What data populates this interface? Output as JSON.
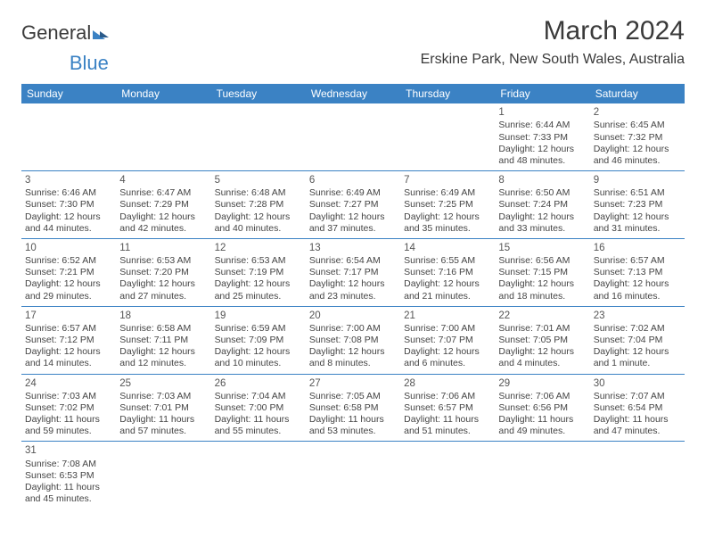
{
  "brand": {
    "part1": "General",
    "part2": "Blue"
  },
  "header": {
    "month_title": "March 2024",
    "location": "Erskine Park, New South Wales, Australia"
  },
  "styling": {
    "header_bg": "#3b82c4",
    "header_fg": "#ffffff",
    "row_border": "#3b82c4",
    "page_bg": "#ffffff",
    "text_color": "#444444",
    "month_title_fontsize": 30,
    "location_fontsize": 16,
    "dayheader_fontsize": 12,
    "cell_fontsize": 10.5,
    "columns": 7
  },
  "day_headers": [
    "Sunday",
    "Monday",
    "Tuesday",
    "Wednesday",
    "Thursday",
    "Friday",
    "Saturday"
  ],
  "weeks": [
    [
      null,
      null,
      null,
      null,
      null,
      {
        "n": "1",
        "sr": "Sunrise: 6:44 AM",
        "ss": "Sunset: 7:33 PM",
        "d1": "Daylight: 12 hours",
        "d2": "and 48 minutes."
      },
      {
        "n": "2",
        "sr": "Sunrise: 6:45 AM",
        "ss": "Sunset: 7:32 PM",
        "d1": "Daylight: 12 hours",
        "d2": "and 46 minutes."
      }
    ],
    [
      {
        "n": "3",
        "sr": "Sunrise: 6:46 AM",
        "ss": "Sunset: 7:30 PM",
        "d1": "Daylight: 12 hours",
        "d2": "and 44 minutes."
      },
      {
        "n": "4",
        "sr": "Sunrise: 6:47 AM",
        "ss": "Sunset: 7:29 PM",
        "d1": "Daylight: 12 hours",
        "d2": "and 42 minutes."
      },
      {
        "n": "5",
        "sr": "Sunrise: 6:48 AM",
        "ss": "Sunset: 7:28 PM",
        "d1": "Daylight: 12 hours",
        "d2": "and 40 minutes."
      },
      {
        "n": "6",
        "sr": "Sunrise: 6:49 AM",
        "ss": "Sunset: 7:27 PM",
        "d1": "Daylight: 12 hours",
        "d2": "and 37 minutes."
      },
      {
        "n": "7",
        "sr": "Sunrise: 6:49 AM",
        "ss": "Sunset: 7:25 PM",
        "d1": "Daylight: 12 hours",
        "d2": "and 35 minutes."
      },
      {
        "n": "8",
        "sr": "Sunrise: 6:50 AM",
        "ss": "Sunset: 7:24 PM",
        "d1": "Daylight: 12 hours",
        "d2": "and 33 minutes."
      },
      {
        "n": "9",
        "sr": "Sunrise: 6:51 AM",
        "ss": "Sunset: 7:23 PM",
        "d1": "Daylight: 12 hours",
        "d2": "and 31 minutes."
      }
    ],
    [
      {
        "n": "10",
        "sr": "Sunrise: 6:52 AM",
        "ss": "Sunset: 7:21 PM",
        "d1": "Daylight: 12 hours",
        "d2": "and 29 minutes."
      },
      {
        "n": "11",
        "sr": "Sunrise: 6:53 AM",
        "ss": "Sunset: 7:20 PM",
        "d1": "Daylight: 12 hours",
        "d2": "and 27 minutes."
      },
      {
        "n": "12",
        "sr": "Sunrise: 6:53 AM",
        "ss": "Sunset: 7:19 PM",
        "d1": "Daylight: 12 hours",
        "d2": "and 25 minutes."
      },
      {
        "n": "13",
        "sr": "Sunrise: 6:54 AM",
        "ss": "Sunset: 7:17 PM",
        "d1": "Daylight: 12 hours",
        "d2": "and 23 minutes."
      },
      {
        "n": "14",
        "sr": "Sunrise: 6:55 AM",
        "ss": "Sunset: 7:16 PM",
        "d1": "Daylight: 12 hours",
        "d2": "and 21 minutes."
      },
      {
        "n": "15",
        "sr": "Sunrise: 6:56 AM",
        "ss": "Sunset: 7:15 PM",
        "d1": "Daylight: 12 hours",
        "d2": "and 18 minutes."
      },
      {
        "n": "16",
        "sr": "Sunrise: 6:57 AM",
        "ss": "Sunset: 7:13 PM",
        "d1": "Daylight: 12 hours",
        "d2": "and 16 minutes."
      }
    ],
    [
      {
        "n": "17",
        "sr": "Sunrise: 6:57 AM",
        "ss": "Sunset: 7:12 PM",
        "d1": "Daylight: 12 hours",
        "d2": "and 14 minutes."
      },
      {
        "n": "18",
        "sr": "Sunrise: 6:58 AM",
        "ss": "Sunset: 7:11 PM",
        "d1": "Daylight: 12 hours",
        "d2": "and 12 minutes."
      },
      {
        "n": "19",
        "sr": "Sunrise: 6:59 AM",
        "ss": "Sunset: 7:09 PM",
        "d1": "Daylight: 12 hours",
        "d2": "and 10 minutes."
      },
      {
        "n": "20",
        "sr": "Sunrise: 7:00 AM",
        "ss": "Sunset: 7:08 PM",
        "d1": "Daylight: 12 hours",
        "d2": "and 8 minutes."
      },
      {
        "n": "21",
        "sr": "Sunrise: 7:00 AM",
        "ss": "Sunset: 7:07 PM",
        "d1": "Daylight: 12 hours",
        "d2": "and 6 minutes."
      },
      {
        "n": "22",
        "sr": "Sunrise: 7:01 AM",
        "ss": "Sunset: 7:05 PM",
        "d1": "Daylight: 12 hours",
        "d2": "and 4 minutes."
      },
      {
        "n": "23",
        "sr": "Sunrise: 7:02 AM",
        "ss": "Sunset: 7:04 PM",
        "d1": "Daylight: 12 hours",
        "d2": "and 1 minute."
      }
    ],
    [
      {
        "n": "24",
        "sr": "Sunrise: 7:03 AM",
        "ss": "Sunset: 7:02 PM",
        "d1": "Daylight: 11 hours",
        "d2": "and 59 minutes."
      },
      {
        "n": "25",
        "sr": "Sunrise: 7:03 AM",
        "ss": "Sunset: 7:01 PM",
        "d1": "Daylight: 11 hours",
        "d2": "and 57 minutes."
      },
      {
        "n": "26",
        "sr": "Sunrise: 7:04 AM",
        "ss": "Sunset: 7:00 PM",
        "d1": "Daylight: 11 hours",
        "d2": "and 55 minutes."
      },
      {
        "n": "27",
        "sr": "Sunrise: 7:05 AM",
        "ss": "Sunset: 6:58 PM",
        "d1": "Daylight: 11 hours",
        "d2": "and 53 minutes."
      },
      {
        "n": "28",
        "sr": "Sunrise: 7:06 AM",
        "ss": "Sunset: 6:57 PM",
        "d1": "Daylight: 11 hours",
        "d2": "and 51 minutes."
      },
      {
        "n": "29",
        "sr": "Sunrise: 7:06 AM",
        "ss": "Sunset: 6:56 PM",
        "d1": "Daylight: 11 hours",
        "d2": "and 49 minutes."
      },
      {
        "n": "30",
        "sr": "Sunrise: 7:07 AM",
        "ss": "Sunset: 6:54 PM",
        "d1": "Daylight: 11 hours",
        "d2": "and 47 minutes."
      }
    ],
    [
      {
        "n": "31",
        "sr": "Sunrise: 7:08 AM",
        "ss": "Sunset: 6:53 PM",
        "d1": "Daylight: 11 hours",
        "d2": "and 45 minutes."
      },
      null,
      null,
      null,
      null,
      null,
      null
    ]
  ]
}
